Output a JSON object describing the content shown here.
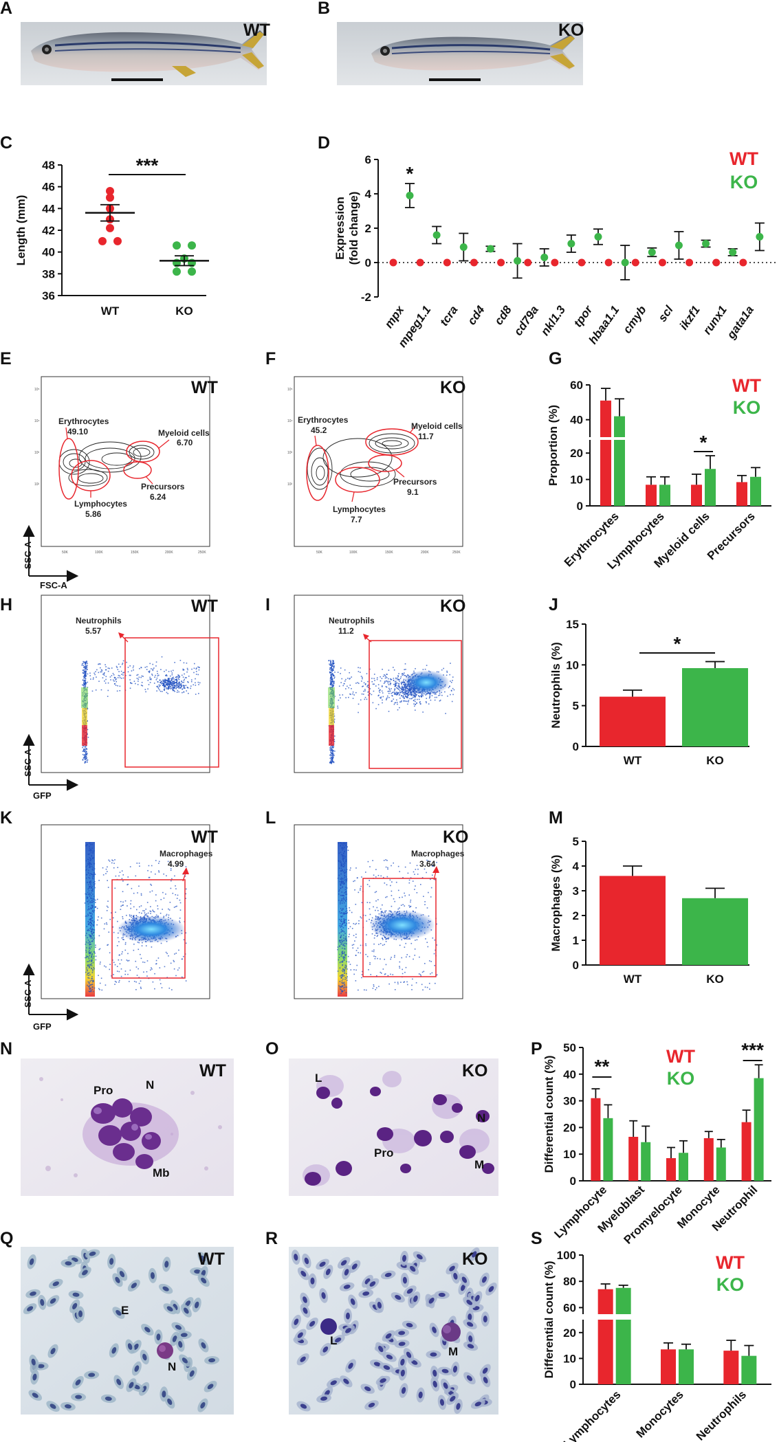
{
  "colors": {
    "wt": "#e8262d",
    "ko": "#3cb54a",
    "gate": "#e8262d",
    "axis": "#111111",
    "flow": "#1f4fc0"
  },
  "panels": {
    "A": {
      "label": "A",
      "tag": "WT"
    },
    "B": {
      "label": "B",
      "tag": "KO"
    },
    "E": {
      "label": "E",
      "tag": "WT",
      "gates": [
        {
          "name": "Erythrocytes",
          "value": "49.10"
        },
        {
          "name": "Myeloid cells",
          "value": "6.70"
        },
        {
          "name": "Precursors",
          "value": "6.24"
        },
        {
          "name": "Lymphocytes",
          "value": "5.86"
        }
      ],
      "xaxis": "FSC-A",
      "yaxis": "SSC-A"
    },
    "F": {
      "label": "F",
      "tag": "KO",
      "gates": [
        {
          "name": "Erythrocytes",
          "value": "45.2"
        },
        {
          "name": "Myeloid cells",
          "value": "11.7"
        },
        {
          "name": "Precursors",
          "value": "9.1"
        },
        {
          "name": "Lymphocytes",
          "value": "7.7"
        }
      ]
    },
    "H": {
      "label": "H",
      "tag": "WT",
      "gate_name": "Neutrophils",
      "gate_value": "5.57",
      "xaxis": "GFP",
      "yaxis": "SSC-A"
    },
    "I": {
      "label": "I",
      "tag": "KO",
      "gate_name": "Neutrophils",
      "gate_value": "11.2"
    },
    "K": {
      "label": "K",
      "tag": "WT",
      "gate_name": "Macrophages",
      "gate_value": "4.99",
      "xaxis": "GFP",
      "yaxis": "SSC-A"
    },
    "L": {
      "label": "L",
      "tag": "KO",
      "gate_name": "Macrophages",
      "gate_value": "3.64"
    },
    "N": {
      "label": "N",
      "tag": "WT",
      "cells": [
        "Pro",
        "N",
        "Mb"
      ]
    },
    "O": {
      "label": "O",
      "tag": "KO",
      "cells": [
        "L",
        "N",
        "Pro",
        "M"
      ]
    },
    "Q": {
      "label": "Q",
      "tag": "WT",
      "cells": [
        "E",
        "N"
      ]
    },
    "R": {
      "label": "R",
      "tag": "KO",
      "cells": [
        "L",
        "M"
      ]
    }
  },
  "chart_data": [
    {
      "panel": "C",
      "type": "scatter",
      "ylabel": "Length (mm)",
      "categories": [
        "WT",
        "KO"
      ],
      "ylim": [
        36,
        48
      ],
      "yticks": [
        "36",
        "38",
        "40",
        "42",
        "44",
        "46",
        "48"
      ],
      "series": [
        {
          "name": "WT",
          "values": [
            45.6,
            45.0,
            44.0,
            43.0,
            42.2,
            41.0,
            41.0
          ],
          "mean": 43.6,
          "sem": 0.75
        },
        {
          "name": "KO",
          "values": [
            40.6,
            40.6,
            39.4,
            39.0,
            39.0,
            38.2,
            38.2
          ],
          "mean": 39.2,
          "sem": 0.45
        }
      ],
      "significance": "***"
    },
    {
      "panel": "D",
      "type": "scatter",
      "ylabel": "Expression (fold change)",
      "ylim": [
        -2,
        6
      ],
      "yticks": [
        "-2",
        "0",
        "2",
        "4",
        "6"
      ],
      "categories": [
        "mpx",
        "mpeg1.1",
        "tcra",
        "cd4",
        "cd8",
        "cd79a",
        "nkl1.3",
        "tpor",
        "hbaa1.1",
        "cmyb",
        "scl",
        "ikzf1",
        "runx1",
        "gata1a"
      ],
      "series": [
        {
          "name": "WT",
          "values": [
            0,
            0,
            0,
            0,
            0,
            0,
            0,
            0,
            0,
            0,
            0,
            0,
            0,
            0
          ]
        },
        {
          "name": "KO",
          "values": [
            3.9,
            1.6,
            0.9,
            0.8,
            0.1,
            0.3,
            1.1,
            1.5,
            0.0,
            0.6,
            1.0,
            1.1,
            0.6,
            1.5
          ],
          "err": [
            0.7,
            0.5,
            0.8,
            0.15,
            1.0,
            0.5,
            0.5,
            0.45,
            1.0,
            0.25,
            0.8,
            0.2,
            0.2,
            0.8
          ]
        }
      ],
      "legend": [
        "WT",
        "KO"
      ],
      "significance": [
        "*"
      ]
    },
    {
      "panel": "G",
      "type": "bar",
      "ylabel": "Proportion (%)",
      "categories": [
        "Erythrocytes",
        "Lymphocytes",
        "Myeloid cells",
        "Precursors"
      ],
      "yticks_lower": [
        "0",
        "10",
        "20"
      ],
      "yticks_upper": [
        "40",
        "60"
      ],
      "series": [
        {
          "name": "WT",
          "values": [
            51,
            8,
            8,
            9
          ],
          "err": [
            7,
            3,
            4,
            2.5
          ]
        },
        {
          "name": "KO",
          "values": [
            42,
            8,
            14,
            11
          ],
          "err": [
            10,
            3,
            5,
            3.5
          ]
        }
      ],
      "legend": [
        "WT",
        "KO"
      ],
      "significance": [
        "*"
      ]
    },
    {
      "panel": "J",
      "type": "bar",
      "ylabel": "Neutrophils (%)",
      "categories": [
        "WT",
        "KO"
      ],
      "ylim": [
        0,
        15
      ],
      "yticks": [
        "0",
        "5",
        "10",
        "15"
      ],
      "values": [
        6.1,
        9.6
      ],
      "err": [
        0.8,
        0.8
      ],
      "significance": "*"
    },
    {
      "panel": "M",
      "type": "bar",
      "ylabel": "Macrophages (%)",
      "categories": [
        "WT",
        "KO"
      ],
      "ylim": [
        0,
        5
      ],
      "yticks": [
        "0",
        "1",
        "2",
        "3",
        "4",
        "5"
      ],
      "values": [
        3.6,
        2.7
      ],
      "err": [
        0.4,
        0.4
      ]
    },
    {
      "panel": "P",
      "type": "bar",
      "ylabel": "Differential count (%)",
      "categories": [
        "Lymphocyte",
        "Myeloblast",
        "Promyelocyte",
        "Monocyte",
        "Neutrophil"
      ],
      "ylim": [
        0,
        50
      ],
      "yticks": [
        "0",
        "10",
        "20",
        "30",
        "40",
        "50"
      ],
      "series": [
        {
          "name": "WT",
          "values": [
            31,
            16.5,
            8.5,
            16,
            22
          ],
          "err": [
            3.5,
            6,
            4,
            2.5,
            4.5
          ]
        },
        {
          "name": "KO",
          "values": [
            23.5,
            14.5,
            10.5,
            12.5,
            38.5
          ],
          "err": [
            5,
            6,
            4.5,
            3,
            5
          ]
        }
      ],
      "legend": [
        "WT",
        "KO"
      ],
      "significance": [
        "**",
        "***"
      ]
    },
    {
      "panel": "S",
      "type": "bar",
      "ylabel": "Differential count (%)",
      "categories": [
        "Lymphocytes",
        "Monocytes",
        "Neutrophils"
      ],
      "yticks_lower": [
        "0",
        "10",
        "20"
      ],
      "yticks_upper": [
        "60",
        "80",
        "100"
      ],
      "series": [
        {
          "name": "WT",
          "values": [
            74,
            13.5,
            13
          ],
          "err": [
            4,
            2.5,
            4
          ]
        },
        {
          "name": "KO",
          "values": [
            75,
            13.5,
            11
          ],
          "err": [
            2,
            2,
            4
          ]
        }
      ],
      "legend": [
        "WT",
        "KO"
      ]
    }
  ]
}
